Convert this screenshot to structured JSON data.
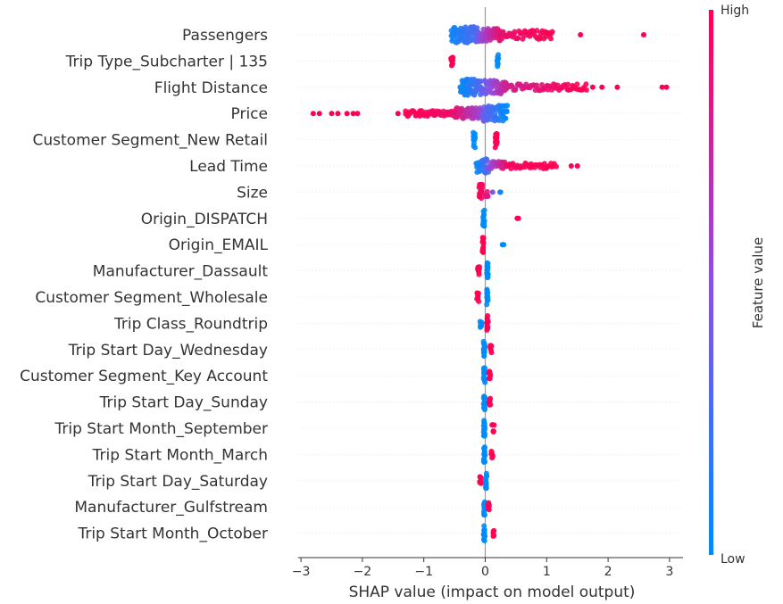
{
  "chart_data": {
    "type": "scatter",
    "subtype": "shap-beeswarm",
    "xlabel": "SHAP value (impact on model output)",
    "xlim": [
      -3.05,
      3.22
    ],
    "xticks": [
      -3,
      -2,
      -1,
      0,
      1,
      2,
      3
    ],
    "xtick_labels": [
      "−3",
      "−2",
      "−1",
      "0",
      "1",
      "2",
      "3"
    ],
    "colorbar": {
      "label": "Feature value",
      "high_label": "High",
      "low_label": "Low",
      "low_color": "#008bfb",
      "high_color": "#ff0052"
    },
    "grid": false,
    "features": [
      {
        "name": "Passengers",
        "clusters": [
          {
            "x0": -0.55,
            "x1": -0.1,
            "spread": 1.0,
            "n": 80,
            "c0": 0.05,
            "c1": 0.3
          },
          {
            "x0": -0.1,
            "x1": 0.25,
            "spread": 0.8,
            "n": 50,
            "c0": 0.5,
            "c1": 0.9
          },
          {
            "x0": 0.25,
            "x1": 1.1,
            "spread": 0.55,
            "n": 55,
            "c0": 0.9,
            "c1": 1.0
          }
        ],
        "points": [
          [
            1.55,
            1.0
          ],
          [
            2.58,
            1.0
          ]
        ]
      },
      {
        "name": "Trip Type_Subcharter | 135",
        "clusters": [
          {
            "x0": -0.55,
            "x1": -0.53,
            "spread": 0.9,
            "n": 10,
            "c0": 1.0,
            "c1": 1.0
          },
          {
            "x0": 0.2,
            "x1": 0.21,
            "spread": 0.9,
            "n": 10,
            "c0": 0.0,
            "c1": 0.0
          }
        ],
        "points": []
      },
      {
        "name": "Flight Distance",
        "clusters": [
          {
            "x0": -0.4,
            "x1": -0.05,
            "spread": 1.0,
            "n": 80,
            "c0": 0.0,
            "c1": 0.3
          },
          {
            "x0": -0.05,
            "x1": 0.35,
            "spread": 0.85,
            "n": 60,
            "c0": 0.35,
            "c1": 0.8
          },
          {
            "x0": 0.35,
            "x1": 1.65,
            "spread": 0.4,
            "n": 70,
            "c0": 0.8,
            "c1": 1.0
          }
        ],
        "points": [
          [
            1.75,
            1.0
          ],
          [
            1.9,
            1.0
          ],
          [
            2.15,
            1.0
          ],
          [
            2.88,
            1.0
          ],
          [
            2.95,
            1.0
          ]
        ]
      },
      {
        "name": "Price",
        "clusters": [
          {
            "x0": -1.3,
            "x1": -0.5,
            "spread": 0.35,
            "n": 60,
            "c0": 1.0,
            "c1": 0.92
          },
          {
            "x0": -0.5,
            "x1": -0.05,
            "spread": 0.7,
            "n": 60,
            "c0": 0.9,
            "c1": 0.55
          },
          {
            "x0": -0.05,
            "x1": 0.35,
            "spread": 1.0,
            "n": 70,
            "c0": 0.4,
            "c1": 0.0
          }
        ],
        "points": [
          [
            -2.8,
            1.0
          ],
          [
            -2.7,
            1.0
          ],
          [
            -2.5,
            1.0
          ],
          [
            -2.4,
            1.0
          ],
          [
            -2.25,
            1.0
          ],
          [
            -2.15,
            1.0
          ],
          [
            -2.08,
            1.0
          ],
          [
            -1.42,
            1.0
          ]
        ]
      },
      {
        "name": "Customer Segment_New Retail",
        "clusters": [
          {
            "x0": -0.19,
            "x1": -0.17,
            "spread": 1.0,
            "n": 18,
            "c0": 0.0,
            "c1": 0.0
          },
          {
            "x0": 0.17,
            "x1": 0.19,
            "spread": 1.0,
            "n": 18,
            "c0": 1.0,
            "c1": 1.0
          }
        ],
        "points": []
      },
      {
        "name": "Lead Time",
        "clusters": [
          {
            "x0": -0.15,
            "x1": 0.05,
            "spread": 0.9,
            "n": 30,
            "c0": 0.0,
            "c1": 0.3
          },
          {
            "x0": 0.05,
            "x1": 0.35,
            "spread": 0.55,
            "n": 25,
            "c0": 0.5,
            "c1": 0.9
          },
          {
            "x0": 0.35,
            "x1": 1.15,
            "spread": 0.35,
            "n": 40,
            "c0": 0.95,
            "c1": 1.0
          }
        ],
        "points": [
          [
            1.4,
            1.0
          ],
          [
            1.5,
            1.0
          ]
        ]
      },
      {
        "name": "Size",
        "clusters": [
          {
            "x0": -0.1,
            "x1": -0.05,
            "spread": 1.0,
            "n": 18,
            "c0": 1.0,
            "c1": 0.95
          },
          {
            "x0": 0.0,
            "x1": 0.05,
            "spread": 0.6,
            "n": 6,
            "c0": 0.85,
            "c1": 0.85
          }
        ],
        "points": [
          [
            0.12,
            0.45
          ],
          [
            0.24,
            0.05
          ],
          [
            0.25,
            0.05
          ]
        ]
      },
      {
        "name": "Origin_DISPATCH",
        "clusters": [
          {
            "x0": -0.03,
            "x1": -0.02,
            "spread": 1.0,
            "n": 16,
            "c0": 0.0,
            "c1": 0.0
          }
        ],
        "points": [
          [
            0.52,
            1.0
          ],
          [
            0.54,
            1.0
          ]
        ]
      },
      {
        "name": "Origin_EMAIL",
        "clusters": [
          {
            "x0": -0.04,
            "x1": -0.03,
            "spread": 1.0,
            "n": 16,
            "c0": 1.0,
            "c1": 1.0
          }
        ],
        "points": [
          [
            0.28,
            0.0
          ],
          [
            0.3,
            0.0
          ]
        ]
      },
      {
        "name": "Manufacturer_Dassault",
        "clusters": [
          {
            "x0": -0.12,
            "x1": -0.1,
            "spread": 0.55,
            "n": 8,
            "c0": 1.0,
            "c1": 1.0
          },
          {
            "x0": 0.03,
            "x1": 0.04,
            "spread": 1.0,
            "n": 16,
            "c0": 0.0,
            "c1": 0.0
          }
        ],
        "points": []
      },
      {
        "name": "Customer Segment_Wholesale",
        "clusters": [
          {
            "x0": -0.13,
            "x1": -0.11,
            "spread": 0.55,
            "n": 8,
            "c0": 1.0,
            "c1": 1.0
          },
          {
            "x0": 0.03,
            "x1": 0.04,
            "spread": 1.0,
            "n": 16,
            "c0": 0.0,
            "c1": 0.0
          }
        ],
        "points": []
      },
      {
        "name": "Trip Class_Roundtrip",
        "clusters": [
          {
            "x0": -0.08,
            "x1": -0.06,
            "spread": 0.55,
            "n": 8,
            "c0": 0.0,
            "c1": 0.0
          },
          {
            "x0": 0.03,
            "x1": 0.04,
            "spread": 1.0,
            "n": 16,
            "c0": 1.0,
            "c1": 1.0
          }
        ],
        "points": []
      },
      {
        "name": "Trip Start Day_Wednesday",
        "clusters": [
          {
            "x0": -0.02,
            "x1": -0.01,
            "spread": 1.0,
            "n": 16,
            "c0": 0.0,
            "c1": 0.0
          },
          {
            "x0": 0.08,
            "x1": 0.1,
            "spread": 0.55,
            "n": 8,
            "c0": 1.0,
            "c1": 1.0
          }
        ],
        "points": []
      },
      {
        "name": "Customer Segment_Key Account",
        "clusters": [
          {
            "x0": -0.02,
            "x1": -0.01,
            "spread": 1.0,
            "n": 16,
            "c0": 0.0,
            "c1": 0.0
          },
          {
            "x0": 0.06,
            "x1": 0.08,
            "spread": 0.55,
            "n": 8,
            "c0": 1.0,
            "c1": 1.0
          }
        ],
        "points": []
      },
      {
        "name": "Trip Start Day_Sunday",
        "clusters": [
          {
            "x0": -0.02,
            "x1": -0.01,
            "spread": 1.0,
            "n": 16,
            "c0": 0.0,
            "c1": 0.0
          },
          {
            "x0": 0.06,
            "x1": 0.08,
            "spread": 0.55,
            "n": 8,
            "c0": 1.0,
            "c1": 1.0
          }
        ],
        "points": []
      },
      {
        "name": "Trip Start Month_September",
        "clusters": [
          {
            "x0": -0.02,
            "x1": -0.01,
            "spread": 1.0,
            "n": 16,
            "c0": 0.0,
            "c1": 0.0
          },
          {
            "x0": 0.12,
            "x1": 0.14,
            "spread": 0.45,
            "n": 6,
            "c0": 1.0,
            "c1": 1.0
          }
        ],
        "points": []
      },
      {
        "name": "Trip Start Month_March",
        "clusters": [
          {
            "x0": -0.02,
            "x1": -0.01,
            "spread": 1.0,
            "n": 16,
            "c0": 0.0,
            "c1": 0.0
          },
          {
            "x0": 0.1,
            "x1": 0.12,
            "spread": 0.45,
            "n": 6,
            "c0": 1.0,
            "c1": 1.0
          }
        ],
        "points": []
      },
      {
        "name": "Trip Start Day_Saturday",
        "clusters": [
          {
            "x0": -0.09,
            "x1": -0.07,
            "spread": 0.5,
            "n": 8,
            "c0": 1.0,
            "c1": 1.0
          },
          {
            "x0": 0.01,
            "x1": 0.02,
            "spread": 1.0,
            "n": 16,
            "c0": 0.0,
            "c1": 0.0
          }
        ],
        "points": []
      },
      {
        "name": "Manufacturer_Gulfstream",
        "clusters": [
          {
            "x0": -0.02,
            "x1": -0.01,
            "spread": 1.0,
            "n": 16,
            "c0": 0.0,
            "c1": 0.0
          },
          {
            "x0": 0.05,
            "x1": 0.06,
            "spread": 0.55,
            "n": 8,
            "c0": 1.0,
            "c1": 1.0
          }
        ],
        "points": []
      },
      {
        "name": "Trip Start Month_October",
        "clusters": [
          {
            "x0": -0.02,
            "x1": -0.01,
            "spread": 1.0,
            "n": 16,
            "c0": 0.0,
            "c1": 0.0
          },
          {
            "x0": 0.13,
            "x1": 0.15,
            "spread": 0.45,
            "n": 6,
            "c0": 1.0,
            "c1": 1.0
          }
        ],
        "points": []
      }
    ]
  }
}
